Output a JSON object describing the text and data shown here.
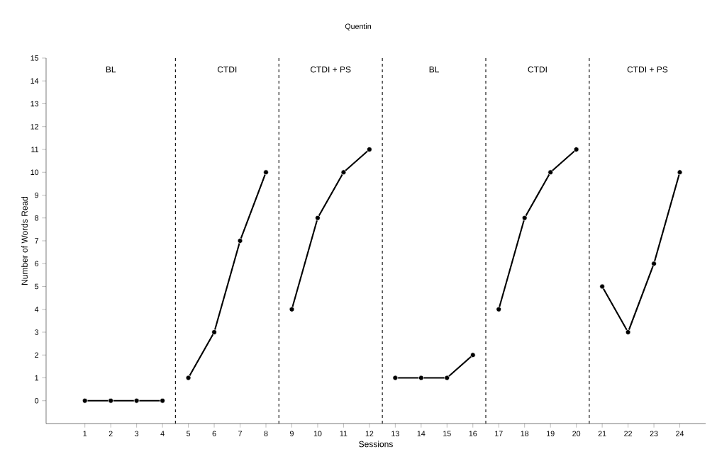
{
  "chart_data": {
    "type": "line",
    "title": "Quentin",
    "xlabel": "Sessions",
    "ylabel": "Number of Words Read",
    "xlim": [
      -0.5,
      25
    ],
    "xticks": [
      1,
      2,
      3,
      4,
      5,
      6,
      7,
      8,
      9,
      10,
      11,
      12,
      13,
      14,
      15,
      16,
      17,
      18,
      19,
      20,
      21,
      22,
      23,
      24
    ],
    "ylim": [
      -1,
      15
    ],
    "yticks": [
      0,
      1,
      2,
      3,
      4,
      5,
      6,
      7,
      8,
      9,
      10,
      11,
      12,
      13,
      14,
      15
    ],
    "series": [
      {
        "color": "#000000",
        "x": [
          1,
          2,
          3,
          4
        ],
        "values": [
          0,
          0,
          0,
          0
        ]
      },
      {
        "color": "#000000",
        "x": [
          5,
          6,
          7,
          8
        ],
        "values": [
          1,
          3,
          7,
          10
        ]
      },
      {
        "color": "#000000",
        "x": [
          9,
          10,
          11,
          12
        ],
        "values": [
          4,
          8,
          10,
          11
        ]
      },
      {
        "color": "#000000",
        "x": [
          13,
          14,
          15,
          16
        ],
        "values": [
          1,
          1,
          1,
          2
        ]
      },
      {
        "color": "#000000",
        "x": [
          17,
          18,
          19,
          20
        ],
        "values": [
          4,
          8,
          10,
          11
        ]
      },
      {
        "color": "#000000",
        "x": [
          21,
          22,
          23,
          24
        ],
        "values": [
          5,
          3,
          6,
          10
        ]
      }
    ],
    "ref_lines": [
      {
        "axis": "x",
        "value": 4.5,
        "line_style": "dashed"
      },
      {
        "axis": "x",
        "value": 8.5,
        "line_style": "dashed"
      },
      {
        "axis": "x",
        "value": 12.5,
        "line_style": "dashed"
      },
      {
        "axis": "x",
        "value": 16.5,
        "line_style": "dashed"
      },
      {
        "axis": "x",
        "value": 20.5,
        "line_style": "dashed"
      }
    ],
    "annotations": [
      "BL",
      "CTDI",
      "CTDI + PS",
      "BL",
      "CTDI",
      "CTDI + PS"
    ],
    "grid": false,
    "marker": "circle",
    "line_style": "solid"
  }
}
